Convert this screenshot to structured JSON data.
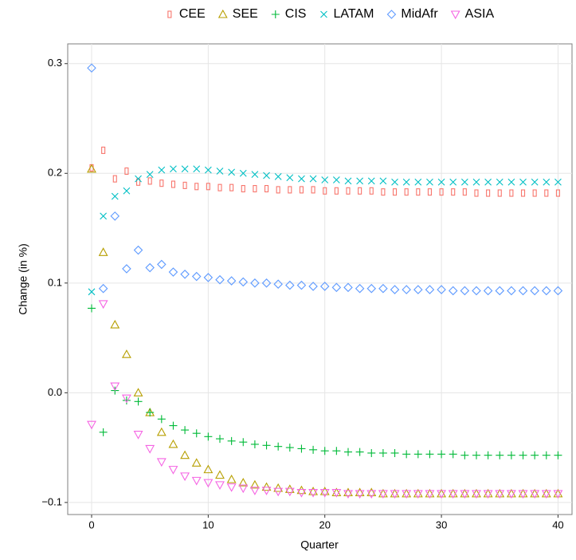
{
  "chart_data": {
    "type": "scatter",
    "x_label": "Quarter",
    "y_label": "Change (in %)",
    "x": [
      0,
      1,
      2,
      3,
      4,
      5,
      6,
      7,
      8,
      9,
      10,
      11,
      12,
      13,
      14,
      15,
      16,
      17,
      18,
      19,
      20,
      21,
      22,
      23,
      24,
      25,
      26,
      27,
      28,
      29,
      30,
      31,
      32,
      33,
      34,
      35,
      36,
      37,
      38,
      39,
      40
    ],
    "series": [
      {
        "name": "CEE",
        "color": "#F8766D",
        "marker": "square",
        "values": [
          0.205,
          0.221,
          0.195,
          0.202,
          0.192,
          0.193,
          0.191,
          0.19,
          0.189,
          0.188,
          0.188,
          0.187,
          0.187,
          0.186,
          0.186,
          0.186,
          0.185,
          0.185,
          0.185,
          0.185,
          0.184,
          0.184,
          0.184,
          0.184,
          0.184,
          0.183,
          0.183,
          0.183,
          0.183,
          0.183,
          0.183,
          0.183,
          0.183,
          0.182,
          0.182,
          0.182,
          0.182,
          0.182,
          0.182,
          0.182,
          0.182
        ]
      },
      {
        "name": "SEE",
        "color": "#B79F00",
        "marker": "triangle",
        "values": [
          0.204,
          0.128,
          0.062,
          0.035,
          0.0,
          -0.018,
          -0.036,
          -0.047,
          -0.057,
          -0.064,
          -0.07,
          -0.075,
          -0.079,
          -0.082,
          -0.084,
          -0.086,
          -0.087,
          -0.088,
          -0.089,
          -0.09,
          -0.09,
          -0.091,
          -0.091,
          -0.091,
          -0.091,
          -0.092,
          -0.092,
          -0.092,
          -0.092,
          -0.092,
          -0.092,
          -0.092,
          -0.092,
          -0.092,
          -0.092,
          -0.092,
          -0.092,
          -0.092,
          -0.092,
          -0.092,
          -0.092
        ]
      },
      {
        "name": "CIS",
        "color": "#00BA38",
        "marker": "plus",
        "values": [
          0.077,
          -0.036,
          0.002,
          -0.007,
          -0.008,
          -0.018,
          -0.024,
          -0.03,
          -0.034,
          -0.037,
          -0.04,
          -0.042,
          -0.044,
          -0.045,
          -0.047,
          -0.048,
          -0.049,
          -0.05,
          -0.051,
          -0.052,
          -0.053,
          -0.053,
          -0.054,
          -0.054,
          -0.055,
          -0.055,
          -0.055,
          -0.056,
          -0.056,
          -0.056,
          -0.056,
          -0.056,
          -0.057,
          -0.057,
          -0.057,
          -0.057,
          -0.057,
          -0.057,
          -0.057,
          -0.057,
          -0.057
        ]
      },
      {
        "name": "LATAM",
        "color": "#00BFC4",
        "marker": "cross",
        "values": [
          0.092,
          0.161,
          0.179,
          0.184,
          0.195,
          0.199,
          0.203,
          0.204,
          0.204,
          0.204,
          0.203,
          0.202,
          0.201,
          0.2,
          0.199,
          0.198,
          0.197,
          0.196,
          0.195,
          0.195,
          0.194,
          0.194,
          0.193,
          0.193,
          0.193,
          0.193,
          0.192,
          0.192,
          0.192,
          0.192,
          0.192,
          0.192,
          0.192,
          0.192,
          0.192,
          0.192,
          0.192,
          0.192,
          0.192,
          0.192,
          0.192
        ]
      },
      {
        "name": "MidAfr",
        "color": "#619CFF",
        "marker": "diamond",
        "values": [
          0.296,
          0.095,
          0.161,
          0.113,
          0.13,
          0.114,
          0.117,
          0.11,
          0.108,
          0.106,
          0.105,
          0.103,
          0.102,
          0.101,
          0.1,
          0.1,
          0.099,
          0.098,
          0.098,
          0.097,
          0.097,
          0.096,
          0.096,
          0.095,
          0.095,
          0.095,
          0.094,
          0.094,
          0.094,
          0.094,
          0.094,
          0.093,
          0.093,
          0.093,
          0.093,
          0.093,
          0.093,
          0.093,
          0.093,
          0.093,
          0.093
        ]
      },
      {
        "name": "ASIA",
        "color": "#F564E3",
        "marker": "triangle-down",
        "values": [
          -0.029,
          0.081,
          0.006,
          -0.005,
          -0.038,
          -0.051,
          -0.063,
          -0.07,
          -0.076,
          -0.08,
          -0.082,
          -0.084,
          -0.086,
          -0.087,
          -0.089,
          -0.089,
          -0.09,
          -0.09,
          -0.091,
          -0.091,
          -0.091,
          -0.091,
          -0.092,
          -0.092,
          -0.092,
          -0.092,
          -0.092,
          -0.092,
          -0.092,
          -0.092,
          -0.092,
          -0.092,
          -0.092,
          -0.092,
          -0.092,
          -0.092,
          -0.092,
          -0.092,
          -0.092,
          -0.092,
          -0.092
        ]
      }
    ],
    "xlim": [
      -2.05,
      41.2
    ],
    "xticks": [
      0,
      10,
      20,
      30,
      40
    ],
    "ylim": [
      -0.111,
      0.318
    ],
    "yticks": [
      {
        "value": -0.1,
        "label": "−0.1"
      },
      {
        "value": 0,
        "label": "0.0"
      },
      0.1,
      0.2,
      0.3
    ],
    "grid": true,
    "legend": "top"
  }
}
